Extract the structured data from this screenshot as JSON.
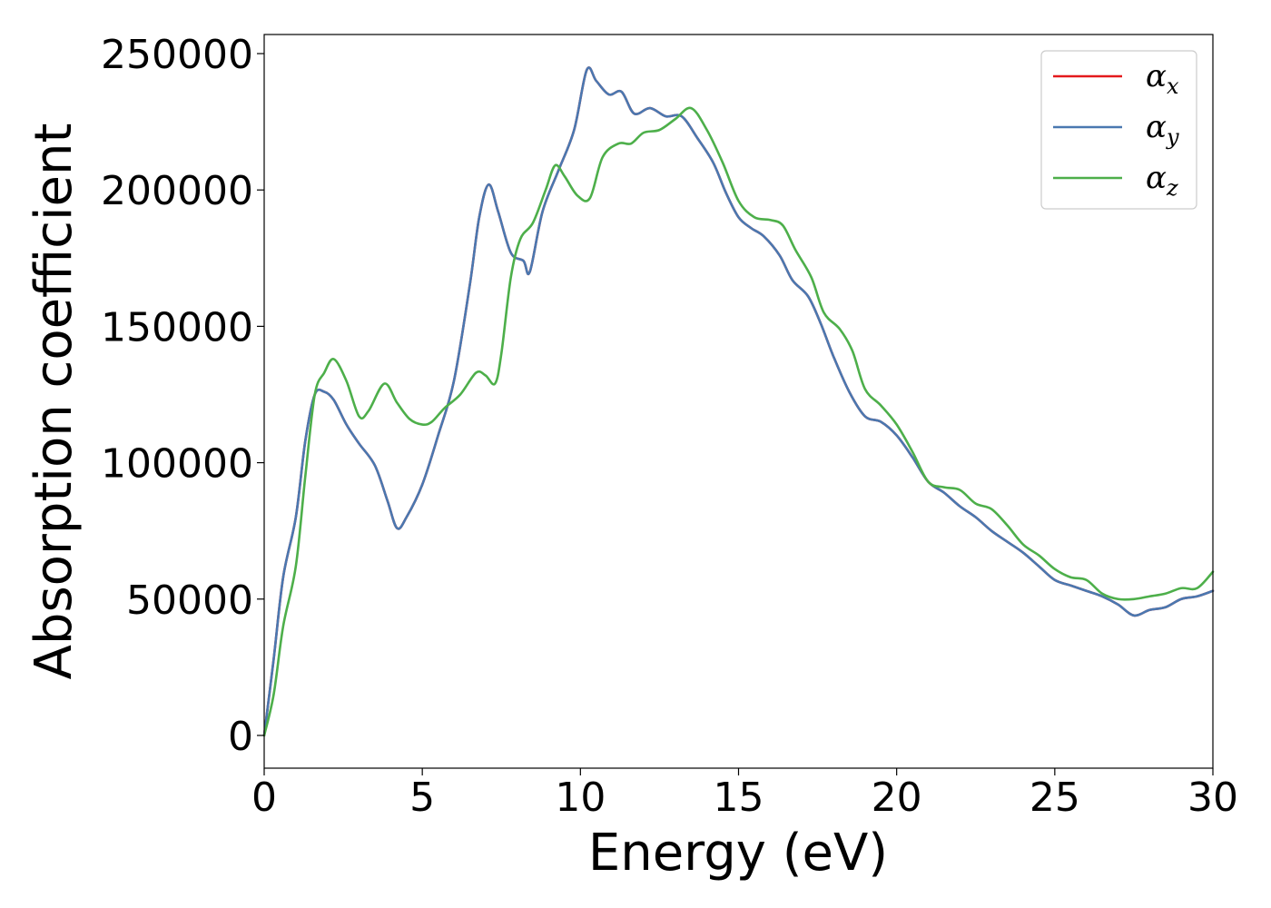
{
  "chart_data": {
    "type": "line",
    "xlabel": "Energy (eV)",
    "ylabel": "Absorption coefficient",
    "xlim": [
      0,
      30
    ],
    "ylim": [
      -12000,
      257000
    ],
    "xticks": [
      0,
      5,
      10,
      15,
      20,
      25,
      30
    ],
    "yticks": [
      0,
      50000,
      100000,
      150000,
      200000,
      250000
    ],
    "xtick_labels": [
      "0",
      "5",
      "10",
      "15",
      "20",
      "25",
      "30"
    ],
    "ytick_labels": [
      "0",
      "50000",
      "100000",
      "150000",
      "200000",
      "250000"
    ],
    "grid": false,
    "legend_position": "top-right",
    "series": [
      {
        "name": "αx",
        "legend_base": "α",
        "legend_sub": "x",
        "color": "#e41a1c",
        "points": [
          [
            0,
            0
          ],
          [
            0.3,
            28000
          ],
          [
            0.6,
            58000
          ],
          [
            1.0,
            80000
          ],
          [
            1.3,
            108000
          ],
          [
            1.6,
            125000
          ],
          [
            1.9,
            126000
          ],
          [
            2.2,
            123000
          ],
          [
            2.6,
            114000
          ],
          [
            3.0,
            107000
          ],
          [
            3.5,
            99000
          ],
          [
            3.9,
            86000
          ],
          [
            4.2,
            76000
          ],
          [
            4.5,
            80000
          ],
          [
            5.0,
            92000
          ],
          [
            5.5,
            110000
          ],
          [
            6.0,
            130000
          ],
          [
            6.5,
            165000
          ],
          [
            6.8,
            190000
          ],
          [
            7.1,
            202000
          ],
          [
            7.4,
            192000
          ],
          [
            7.8,
            177000
          ],
          [
            8.2,
            174000
          ],
          [
            8.4,
            170000
          ],
          [
            8.8,
            192000
          ],
          [
            9.3,
            207000
          ],
          [
            9.8,
            222000
          ],
          [
            10.2,
            244000
          ],
          [
            10.5,
            240000
          ],
          [
            10.9,
            235000
          ],
          [
            11.3,
            236000
          ],
          [
            11.7,
            228000
          ],
          [
            12.2,
            230000
          ],
          [
            12.7,
            227000
          ],
          [
            13.2,
            227000
          ],
          [
            13.7,
            219000
          ],
          [
            14.2,
            210000
          ],
          [
            14.6,
            199000
          ],
          [
            15.0,
            190000
          ],
          [
            15.4,
            186000
          ],
          [
            15.8,
            183000
          ],
          [
            16.3,
            176000
          ],
          [
            16.7,
            167000
          ],
          [
            17.2,
            161000
          ],
          [
            17.6,
            151000
          ],
          [
            18.0,
            139000
          ],
          [
            18.5,
            126000
          ],
          [
            19.0,
            117000
          ],
          [
            19.5,
            115000
          ],
          [
            20.0,
            110000
          ],
          [
            20.5,
            102000
          ],
          [
            21.0,
            93000
          ],
          [
            21.5,
            89000
          ],
          [
            22.0,
            84000
          ],
          [
            22.5,
            80000
          ],
          [
            23.0,
            75000
          ],
          [
            23.5,
            71000
          ],
          [
            24.0,
            67000
          ],
          [
            24.5,
            62000
          ],
          [
            25.0,
            57000
          ],
          [
            25.5,
            55000
          ],
          [
            26.0,
            53000
          ],
          [
            26.5,
            51000
          ],
          [
            27.0,
            48000
          ],
          [
            27.5,
            44000
          ],
          [
            28.0,
            46000
          ],
          [
            28.5,
            47000
          ],
          [
            29.0,
            50000
          ],
          [
            29.5,
            51000
          ],
          [
            30.0,
            53000
          ]
        ]
      },
      {
        "name": "αy",
        "legend_base": "α",
        "legend_sub": "y",
        "color": "#4a78b0",
        "points": [
          [
            0,
            0
          ],
          [
            0.3,
            28000
          ],
          [
            0.6,
            58000
          ],
          [
            1.0,
            80000
          ],
          [
            1.3,
            108000
          ],
          [
            1.6,
            125000
          ],
          [
            1.9,
            126000
          ],
          [
            2.2,
            123000
          ],
          [
            2.6,
            114000
          ],
          [
            3.0,
            107000
          ],
          [
            3.5,
            99000
          ],
          [
            3.9,
            86000
          ],
          [
            4.2,
            76000
          ],
          [
            4.5,
            80000
          ],
          [
            5.0,
            92000
          ],
          [
            5.5,
            110000
          ],
          [
            6.0,
            130000
          ],
          [
            6.5,
            165000
          ],
          [
            6.8,
            190000
          ],
          [
            7.1,
            202000
          ],
          [
            7.4,
            192000
          ],
          [
            7.8,
            177000
          ],
          [
            8.2,
            174000
          ],
          [
            8.4,
            170000
          ],
          [
            8.8,
            192000
          ],
          [
            9.3,
            207000
          ],
          [
            9.8,
            222000
          ],
          [
            10.2,
            244000
          ],
          [
            10.5,
            240000
          ],
          [
            10.9,
            235000
          ],
          [
            11.3,
            236000
          ],
          [
            11.7,
            228000
          ],
          [
            12.2,
            230000
          ],
          [
            12.7,
            227000
          ],
          [
            13.2,
            227000
          ],
          [
            13.7,
            219000
          ],
          [
            14.2,
            210000
          ],
          [
            14.6,
            199000
          ],
          [
            15.0,
            190000
          ],
          [
            15.4,
            186000
          ],
          [
            15.8,
            183000
          ],
          [
            16.3,
            176000
          ],
          [
            16.7,
            167000
          ],
          [
            17.2,
            161000
          ],
          [
            17.6,
            151000
          ],
          [
            18.0,
            139000
          ],
          [
            18.5,
            126000
          ],
          [
            19.0,
            117000
          ],
          [
            19.5,
            115000
          ],
          [
            20.0,
            110000
          ],
          [
            20.5,
            102000
          ],
          [
            21.0,
            93000
          ],
          [
            21.5,
            89000
          ],
          [
            22.0,
            84000
          ],
          [
            22.5,
            80000
          ],
          [
            23.0,
            75000
          ],
          [
            23.5,
            71000
          ],
          [
            24.0,
            67000
          ],
          [
            24.5,
            62000
          ],
          [
            25.0,
            57000
          ],
          [
            25.5,
            55000
          ],
          [
            26.0,
            53000
          ],
          [
            26.5,
            51000
          ],
          [
            27.0,
            48000
          ],
          [
            27.5,
            44000
          ],
          [
            28.0,
            46000
          ],
          [
            28.5,
            47000
          ],
          [
            29.0,
            50000
          ],
          [
            29.5,
            51000
          ],
          [
            30.0,
            53000
          ]
        ]
      },
      {
        "name": "αz",
        "legend_base": "α",
        "legend_sub": "z",
        "color": "#4daf4a",
        "points": [
          [
            0,
            0
          ],
          [
            0.3,
            15000
          ],
          [
            0.6,
            40000
          ],
          [
            1.0,
            62000
          ],
          [
            1.3,
            95000
          ],
          [
            1.6,
            125000
          ],
          [
            1.9,
            133000
          ],
          [
            2.2,
            138000
          ],
          [
            2.6,
            130000
          ],
          [
            3.0,
            117000
          ],
          [
            3.3,
            119000
          ],
          [
            3.8,
            129000
          ],
          [
            4.2,
            122000
          ],
          [
            4.6,
            116000
          ],
          [
            5.0,
            114000
          ],
          [
            5.3,
            115000
          ],
          [
            5.7,
            120000
          ],
          [
            6.2,
            125000
          ],
          [
            6.7,
            133000
          ],
          [
            7.0,
            132000
          ],
          [
            7.3,
            129000
          ],
          [
            7.5,
            140000
          ],
          [
            7.8,
            168000
          ],
          [
            8.1,
            182000
          ],
          [
            8.5,
            188000
          ],
          [
            8.9,
            200000
          ],
          [
            9.2,
            209000
          ],
          [
            9.5,
            205000
          ],
          [
            9.9,
            198000
          ],
          [
            10.3,
            197000
          ],
          [
            10.7,
            212000
          ],
          [
            11.2,
            217000
          ],
          [
            11.6,
            217000
          ],
          [
            12.0,
            221000
          ],
          [
            12.5,
            222000
          ],
          [
            13.0,
            226000
          ],
          [
            13.5,
            230000
          ],
          [
            14.0,
            222000
          ],
          [
            14.5,
            210000
          ],
          [
            15.0,
            196000
          ],
          [
            15.5,
            190000
          ],
          [
            16.0,
            189000
          ],
          [
            16.4,
            187000
          ],
          [
            16.8,
            178000
          ],
          [
            17.3,
            168000
          ],
          [
            17.7,
            155000
          ],
          [
            18.2,
            149000
          ],
          [
            18.6,
            141000
          ],
          [
            19.0,
            127000
          ],
          [
            19.5,
            121000
          ],
          [
            20.0,
            114000
          ],
          [
            20.5,
            104000
          ],
          [
            21.0,
            93000
          ],
          [
            21.5,
            91000
          ],
          [
            22.0,
            90000
          ],
          [
            22.5,
            85000
          ],
          [
            23.0,
            83000
          ],
          [
            23.5,
            77000
          ],
          [
            24.0,
            70000
          ],
          [
            24.5,
            66000
          ],
          [
            25.0,
            61000
          ],
          [
            25.5,
            58000
          ],
          [
            26.0,
            57000
          ],
          [
            26.5,
            52000
          ],
          [
            27.0,
            50000
          ],
          [
            27.5,
            50000
          ],
          [
            28.0,
            51000
          ],
          [
            28.5,
            52000
          ],
          [
            29.0,
            54000
          ],
          [
            29.5,
            54000
          ],
          [
            30.0,
            60000
          ]
        ]
      }
    ]
  }
}
